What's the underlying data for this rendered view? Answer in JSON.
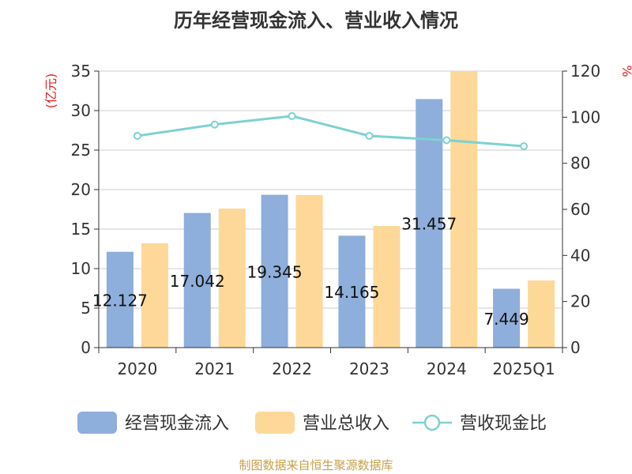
{
  "chart_data": {
    "type": "bar",
    "title": "历年经营现金流入、营业收入情况",
    "categories": [
      "2020",
      "2021",
      "2022",
      "2023",
      "2024",
      "2025Q1"
    ],
    "series": [
      {
        "name": "经营现金流入",
        "kind": "bar",
        "axis": "left",
        "color": "#8eaedb",
        "values": [
          12.127,
          17.042,
          19.345,
          14.165,
          31.457,
          7.449
        ],
        "labels": [
          "12.127",
          "17.042",
          "19.345",
          "14.165",
          "31.457",
          "7.449"
        ]
      },
      {
        "name": "营业总收入",
        "kind": "bar",
        "axis": "left",
        "color": "#fdd898",
        "values": [
          13.2,
          17.6,
          19.3,
          15.4,
          35.0,
          8.5
        ]
      },
      {
        "name": "营收现金比",
        "kind": "line",
        "axis": "right",
        "color": "#7fd1d1",
        "values": [
          91.9,
          96.8,
          100.5,
          91.9,
          90.0,
          87.4
        ]
      }
    ],
    "y_left": {
      "unit": "(亿元)",
      "ylim": [
        0,
        35
      ],
      "ticks": [
        0,
        5,
        10,
        15,
        20,
        25,
        30,
        35
      ]
    },
    "y_right": {
      "unit": "%",
      "ylim": [
        0,
        120
      ],
      "ticks": [
        0,
        20,
        40,
        60,
        80,
        100,
        120
      ]
    },
    "grid": true,
    "legend_position": "bottom"
  },
  "source": "制图数据来自恒生聚源数据库"
}
